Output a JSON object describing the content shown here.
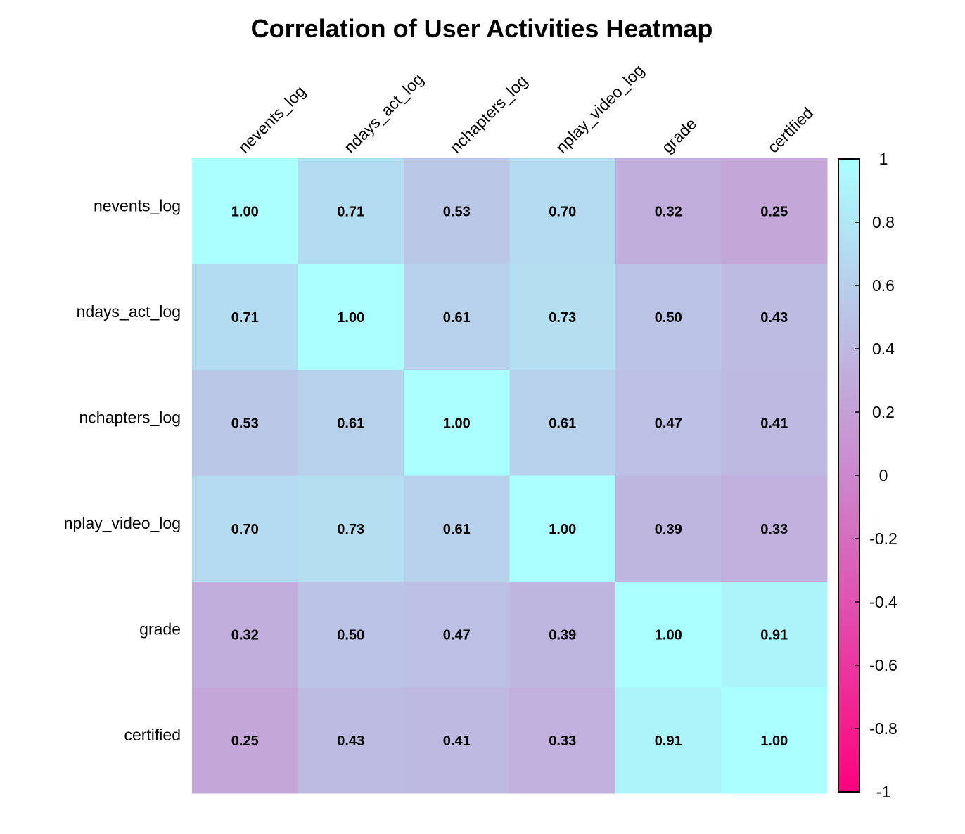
{
  "chart_data": {
    "type": "heatmap",
    "title": "Correlation of User Activities Heatmap",
    "variables": [
      "nevents_log",
      "ndays_act_log",
      "nchapters_log",
      "nplay_video_log",
      "grade",
      "certified"
    ],
    "matrix": [
      [
        1.0,
        0.71,
        0.53,
        0.7,
        0.32,
        0.25
      ],
      [
        0.71,
        1.0,
        0.61,
        0.73,
        0.5,
        0.43
      ],
      [
        0.53,
        0.61,
        1.0,
        0.61,
        0.47,
        0.41
      ],
      [
        0.7,
        0.73,
        0.61,
        1.0,
        0.39,
        0.33
      ],
      [
        0.32,
        0.5,
        0.47,
        0.39,
        1.0,
        0.91
      ],
      [
        0.25,
        0.43,
        0.41,
        0.33,
        0.91,
        1.0
      ]
    ],
    "value_format": "2 decimals",
    "colorbar": {
      "range": [
        -1,
        1
      ],
      "ticks": [
        1,
        0.8,
        0.6,
        0.4,
        0.2,
        0,
        -0.2,
        -0.4,
        -0.6,
        -0.8,
        -1
      ],
      "tick_labels": [
        "1",
        "0.8",
        "0.6",
        "0.4",
        "0.2",
        "0",
        "-0.2",
        "-0.4",
        "-0.6",
        "-0.8",
        "-1"
      ],
      "colors": {
        "low": "#ff0080",
        "mid": "#cc88cc",
        "high": "#aaffff"
      },
      "placement": "right"
    },
    "grid": false,
    "column_labels_position": "top",
    "column_label_rotation": "-45deg"
  }
}
